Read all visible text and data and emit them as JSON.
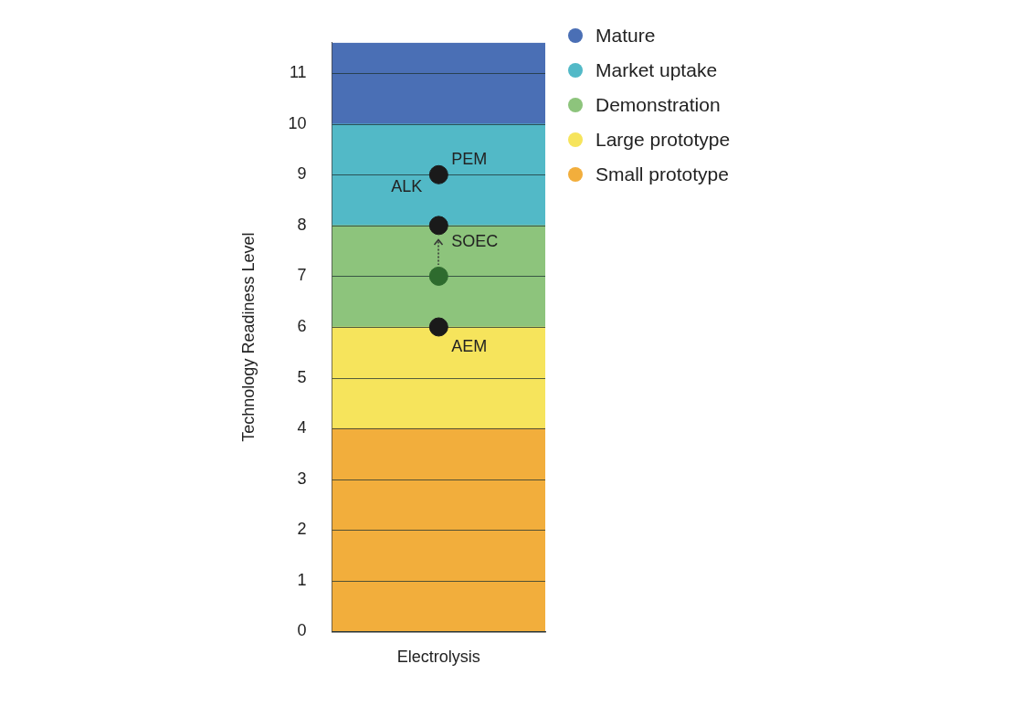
{
  "chart_data": {
    "type": "bar",
    "stacked": true,
    "ylabel": "Technology Readiness Level",
    "categories": [
      "Electrolysis"
    ],
    "series": [
      {
        "name": "Small prototype",
        "color": "#f2ae3c",
        "values": [
          4
        ]
      },
      {
        "name": "Large prototype",
        "color": "#f6e45c",
        "values": [
          2
        ]
      },
      {
        "name": "Demonstration",
        "color": "#8dc47c",
        "values": [
          2
        ]
      },
      {
        "name": "Market uptake",
        "color": "#52b9c7",
        "values": [
          2
        ]
      },
      {
        "name": "Mature",
        "color": "#4a6fb5",
        "values": [
          1.6
        ]
      },
      {
        "type": "scatter",
        "color": "#1a1a1a",
        "marker": "circle",
        "x": [
          "Electrolysis",
          "Electrolysis",
          "Electrolysis"
        ],
        "values": [
          9,
          8,
          6
        ]
      },
      {
        "type": "scatter",
        "color": "#2e6b2e",
        "marker": "circle",
        "x": [
          "Electrolysis"
        ],
        "values": [
          7
        ]
      }
    ],
    "annotations": [
      {
        "text": "PEM",
        "x": "Electrolysis",
        "y": 9
      },
      {
        "text": "ALK",
        "x": "Electrolysis",
        "y": 9
      },
      {
        "text": "SOEC",
        "x": "Electrolysis",
        "y": 8
      },
      {
        "text": "AEM",
        "x": "Electrolysis",
        "y": 6
      }
    ],
    "ylim": [
      0,
      11.6
    ],
    "yticks": [
      0,
      1,
      2,
      3,
      4,
      5,
      6,
      7,
      8,
      9,
      10,
      11
    ],
    "grid": "y",
    "legend": "top right"
  }
}
